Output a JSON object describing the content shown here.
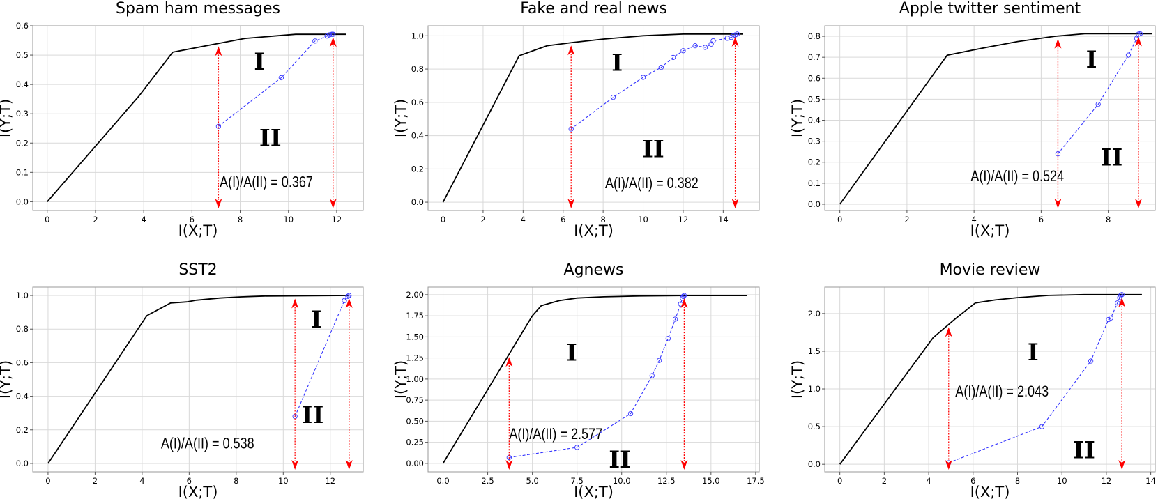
{
  "chart_data": [
    {
      "type": "line",
      "title": "Spam ham messages",
      "xlabel": "I(X;T)",
      "ylabel": "I(Y;T)",
      "xlim": [
        -0.6,
        13.1
      ],
      "ylim": [
        -0.03,
        0.6
      ],
      "xticks": [
        0,
        2,
        4,
        6,
        8,
        10,
        12
      ],
      "yticks": [
        0.0,
        0.1,
        0.2,
        0.3,
        0.4,
        0.5,
        0.6
      ],
      "grid": true,
      "series": [
        {
          "style": "solid-black",
          "x": [
            0,
            3.8,
            5.2,
            6.8,
            8.2,
            9.4,
            10.3,
            11.2,
            12.4
          ],
          "y": [
            0,
            0.36,
            0.51,
            0.535,
            0.557,
            0.565,
            0.571,
            0.571,
            0.571
          ]
        },
        {
          "style": "dashed-blue-circles",
          "x": [
            7.1,
            9.7,
            11.1,
            11.6,
            11.7,
            11.8,
            11.85
          ],
          "y": [
            0.257,
            0.423,
            0.548,
            0.565,
            0.569,
            0.571,
            0.571
          ]
        }
      ],
      "arrows_x": [
        7.1,
        11.85
      ],
      "ratio_text": "A(I)/A(II) = 0.367",
      "region_labels": {
        "I": "I",
        "II": "II"
      }
    },
    {
      "type": "line",
      "title": "Fake and real news",
      "xlabel": "I(X;T)",
      "ylabel": "I(Y;T)",
      "xlim": [
        -0.75,
        15.8
      ],
      "ylim": [
        -0.05,
        1.06
      ],
      "xticks": [
        0,
        2,
        4,
        6,
        8,
        10,
        12,
        14
      ],
      "yticks": [
        0.0,
        0.2,
        0.4,
        0.6,
        0.8,
        1.0
      ],
      "grid": true,
      "series": [
        {
          "style": "solid-black",
          "x": [
            0,
            3.8,
            5.2,
            6.5,
            8,
            10,
            12,
            15
          ],
          "y": [
            0,
            0.88,
            0.94,
            0.96,
            0.98,
            1.0,
            1.01,
            1.01
          ]
        },
        {
          "style": "dashed-blue-circles",
          "x": [
            6.4,
            8.5,
            10.0,
            10.9,
            11.5,
            12.0,
            12.6,
            13.1,
            13.4,
            13.5,
            14.2,
            14.4,
            14.5,
            14.6,
            14.7
          ],
          "y": [
            0.44,
            0.63,
            0.75,
            0.81,
            0.87,
            0.91,
            0.94,
            0.93,
            0.95,
            0.97,
            0.985,
            0.99,
            1.0,
            1.005,
            1.01
          ]
        }
      ],
      "arrows_x": [
        6.4,
        14.6
      ],
      "ratio_text": "A(I)/A(II) = 0.382",
      "region_labels": {
        "I": "I",
        "II": "II"
      }
    },
    {
      "type": "line",
      "title": "Apple twitter sentiment",
      "xlabel": "I(X;T)",
      "ylabel": "I(Y;T)",
      "xlim": [
        -0.45,
        9.4
      ],
      "ylim": [
        -0.03,
        0.85
      ],
      "xticks": [
        0,
        2,
        4,
        6,
        8
      ],
      "yticks": [
        0.0,
        0.1,
        0.2,
        0.3,
        0.4,
        0.5,
        0.6,
        0.7,
        0.8
      ],
      "grid": true,
      "series": [
        {
          "style": "solid-black",
          "x": [
            0,
            3.2,
            4.3,
            5.3,
            6.4,
            7.3,
            8.6,
            9.3
          ],
          "y": [
            0,
            0.71,
            0.745,
            0.775,
            0.8,
            0.812,
            0.812,
            0.812
          ]
        },
        {
          "style": "dashed-blue-circles",
          "x": [
            6.5,
            7.7,
            8.6,
            8.85,
            8.9,
            8.95
          ],
          "y": [
            0.24,
            0.476,
            0.71,
            0.79,
            0.81,
            0.812
          ]
        }
      ],
      "arrows_x": [
        6.5,
        8.9
      ],
      "ratio_text": "A(I)/A(II) = 0.524",
      "region_labels": {
        "I": "I",
        "II": "II"
      }
    },
    {
      "type": "line",
      "title": "SST2",
      "xlabel": "I(X;T)",
      "ylabel": "I(Y;T)",
      "xlim": [
        -0.65,
        13.4
      ],
      "ylim": [
        -0.05,
        1.05
      ],
      "xticks": [
        0,
        2,
        4,
        6,
        8,
        10,
        12
      ],
      "yticks": [
        0.0,
        0.2,
        0.4,
        0.6,
        0.8,
        1.0
      ],
      "grid": true,
      "series": [
        {
          "style": "solid-black",
          "x": [
            0,
            4.2,
            5.2,
            5.9,
            6.3,
            7.3,
            8.2,
            9.2,
            12.8
          ],
          "y": [
            0,
            0.88,
            0.955,
            0.962,
            0.972,
            0.985,
            0.992,
            0.997,
            1.0
          ]
        },
        {
          "style": "dashed-blue-circles",
          "x": [
            10.5,
            12.6,
            12.75,
            12.8
          ],
          "y": [
            0.28,
            0.97,
            0.995,
            1.0
          ]
        }
      ],
      "arrows_x": [
        10.5,
        12.8
      ],
      "ratio_text": "A(I)/A(II) = 0.538",
      "region_labels": {
        "I": "I",
        "II": "II"
      }
    },
    {
      "type": "line",
      "title": "Agnews",
      "xlabel": "I(X;T)",
      "ylabel": "I(Y;T)",
      "xlim": [
        -0.84,
        17.7
      ],
      "ylim": [
        -0.1,
        2.09
      ],
      "xticks": [
        0.0,
        2.5,
        5.0,
        7.5,
        10.0,
        12.5,
        15.0,
        17.5
      ],
      "yticks": [
        0.0,
        0.25,
        0.5,
        0.75,
        1.0,
        1.25,
        1.5,
        1.75,
        2.0
      ],
      "grid": true,
      "series": [
        {
          "style": "solid-black",
          "x": [
            0,
            5.0,
            5.5,
            6.5,
            7.5,
            9.0,
            11.0,
            13.5,
            17.0
          ],
          "y": [
            0,
            1.75,
            1.87,
            1.93,
            1.96,
            1.975,
            1.985,
            1.99,
            1.99
          ]
        },
        {
          "style": "dashed-blue-circles",
          "x": [
            3.7,
            7.5,
            10.5,
            11.7,
            12.1,
            12.6,
            13.0,
            13.3,
            13.4,
            13.45,
            13.5
          ],
          "y": [
            0.07,
            0.19,
            0.59,
            1.04,
            1.22,
            1.48,
            1.71,
            1.89,
            1.96,
            1.98,
            1.99
          ]
        }
      ],
      "arrows_x": [
        3.7,
        13.5
      ],
      "ratio_text": "A(I)/A(II) = 2.577",
      "region_labels": {
        "I": "I",
        "II": "II"
      }
    },
    {
      "type": "line",
      "title": "Movie review",
      "xlabel": "I(X;T)",
      "ylabel": "I(Y;T)",
      "xlim": [
        -0.68,
        14.2
      ],
      "ylim": [
        -0.1,
        2.35
      ],
      "xticks": [
        0,
        2,
        4,
        6,
        8,
        10,
        12,
        14
      ],
      "yticks": [
        0.0,
        0.5,
        1.0,
        1.5,
        2.0
      ],
      "grid": true,
      "series": [
        {
          "style": "solid-black",
          "x": [
            0,
            4.2,
            5.2,
            6.1,
            7.0,
            8.0,
            9.4,
            11.0,
            13.6
          ],
          "y": [
            0,
            1.68,
            1.93,
            2.14,
            2.18,
            2.21,
            2.24,
            2.25,
            2.25
          ]
        },
        {
          "style": "dashed-blue-circles",
          "x": [
            4.9,
            9.1,
            11.3,
            12.1,
            12.2,
            12.5,
            12.6,
            12.65,
            12.7
          ],
          "y": [
            0.02,
            0.5,
            1.37,
            1.92,
            1.94,
            2.14,
            2.21,
            2.24,
            2.25
          ]
        }
      ],
      "arrows_x": [
        4.9,
        12.7
      ],
      "ratio_text": "A(I)/A(II) = 2.043",
      "region_labels": {
        "I": "I",
        "II": "II"
      }
    }
  ],
  "colors": {
    "black_line": "#000000",
    "blue_line": "#3333ff",
    "arrow": "#ff0000",
    "grid": "#d9d9d9",
    "axes_frame": "#999999"
  }
}
